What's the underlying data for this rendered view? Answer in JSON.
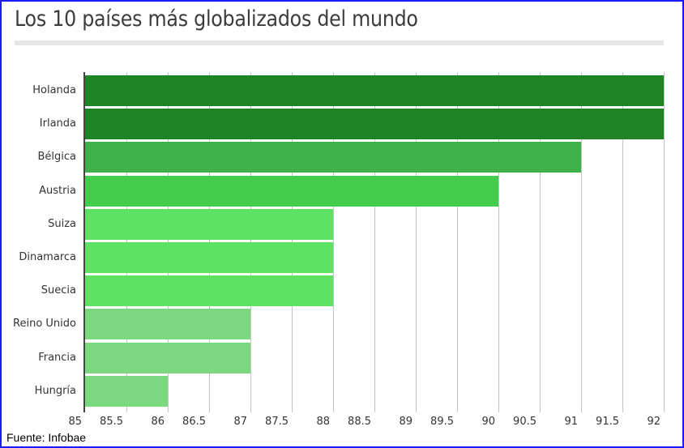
{
  "title": "Los 10 países más globalizados del mundo",
  "source": "Fuente: Infobae",
  "colors": {
    "frame_border": "#1a1aff",
    "dark_green": "#1f8426",
    "mid_green": "#40b04a",
    "green": "#44cc4c",
    "light_green": "#5ee264",
    "pale_green": "#7ad97e"
  },
  "chart_data": {
    "type": "bar",
    "orientation": "horizontal",
    "title": "Los 10 países más globalizados del mundo",
    "xlabel": "",
    "ylabel": "",
    "xlim": [
      85,
      92
    ],
    "x_ticks": [
      "85",
      "85.5",
      "86",
      "86.5",
      "87",
      "87.5",
      "88",
      "88.5",
      "89",
      "89.5",
      "90",
      "90.5",
      "91",
      "91.5",
      "92"
    ],
    "categories": [
      "Holanda",
      "Irlanda",
      "Bélgica",
      "Austria",
      "Suiza",
      "Dinamarca",
      "Suecia",
      "Reino Unido",
      "Francia",
      "Hungría"
    ],
    "values": [
      92,
      92,
      91,
      90,
      88,
      88,
      88,
      87,
      87,
      86
    ],
    "bar_colors": [
      "#1f8426",
      "#1f8426",
      "#40b04a",
      "#44cc4c",
      "#5ee264",
      "#5ee264",
      "#5ee264",
      "#7ad97e",
      "#7ad97e",
      "#7ad97e"
    ],
    "grid": true,
    "legend": "none",
    "source": "Fuente: Infobae"
  }
}
